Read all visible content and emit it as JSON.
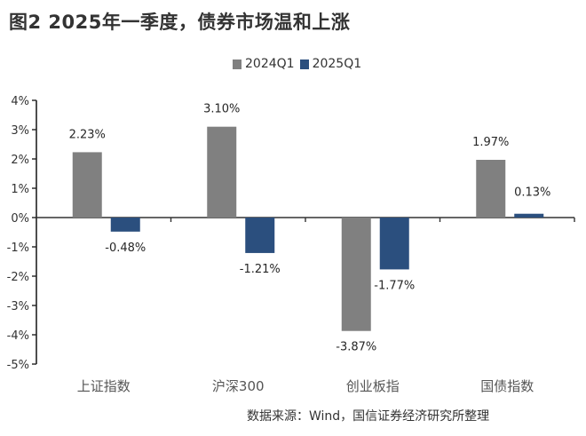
{
  "title": "图2  2025年一季度，债券市场温和上涨",
  "source": "数据来源：Wind，国信证券经济研究所整理",
  "chart_data": {
    "type": "bar",
    "title": "图2  2025年一季度，债券市场温和上涨",
    "xlabel": "",
    "ylabel": "",
    "categories": [
      "上证指数",
      "沪深300",
      "创业板指",
      "国债指数"
    ],
    "series": [
      {
        "name": "2024Q1",
        "color": "#808080",
        "values": [
          2.23,
          3.1,
          -3.87,
          1.97
        ],
        "labels": [
          "2.23%",
          "3.10%",
          "-3.87%",
          "1.97%"
        ]
      },
      {
        "name": "2025Q1",
        "color": "#2b4f7e",
        "values": [
          -0.48,
          -1.21,
          -1.77,
          0.13
        ],
        "labels": [
          "-0.48%",
          "-1.21%",
          "-1.77%",
          "0.13%"
        ]
      }
    ],
    "ylim": [
      -5,
      4
    ],
    "yticks": [
      "4%",
      "3%",
      "2%",
      "1%",
      "0%",
      "-1%",
      "-2%",
      "-3%",
      "-4%",
      "-5%"
    ],
    "grid": false,
    "legend": "top-center"
  }
}
